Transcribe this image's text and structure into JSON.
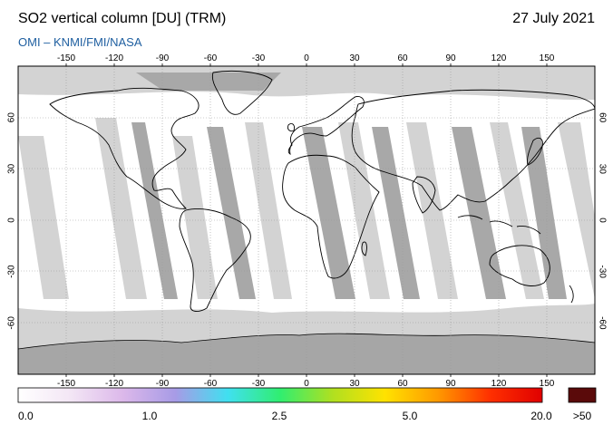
{
  "header": {
    "title": "SO2 vertical column [DU] (TRM)",
    "date": "27 July 2021",
    "credit": "OMI  –  KNMI/FMI/NASA"
  },
  "map": {
    "projection": "equirectangular",
    "lon_range": [
      -180,
      180
    ],
    "lat_range": [
      -90,
      90
    ],
    "lon_ticks": [
      "-150",
      "-120",
      "-90",
      "-60",
      "-30",
      "0",
      "30",
      "60",
      "90",
      "120",
      "150"
    ],
    "lat_ticks": [
      "60",
      "30",
      "0",
      "-30",
      "-60"
    ],
    "colors": {
      "background": "#ffffff",
      "no_data_light": "#d3d3d3",
      "no_data_dark": "#a6a6a6",
      "coastline": "#000000"
    }
  },
  "colorbar": {
    "labels": [
      "0.0",
      "1.0",
      "2.5",
      "5.0",
      "20.0"
    ],
    "overflow_label": ">50",
    "overflow_color": "#5a0a0a",
    "gradient": [
      "#ffffff",
      "#f3e6f5",
      "#dcb8ea",
      "#a79be6",
      "#40e0f0",
      "#30ee70",
      "#b0e020",
      "#ffe200",
      "#ff9a00",
      "#ff3000",
      "#e00000"
    ]
  }
}
